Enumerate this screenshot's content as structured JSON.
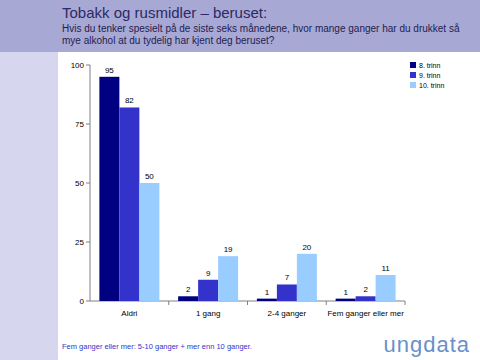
{
  "chart_data": {
    "type": "bar",
    "title": "Tobakk og rusmidler – beruset:",
    "subtitle": "Hvis du tenker spesielt på de siste seks månedene, hvor mange ganger har du drukket så mye alkohol at du tydelig har kjent deg beruset?",
    "categories": [
      "Aldri",
      "1 gang",
      "2-4 ganger",
      "Fem ganger eller mer"
    ],
    "series": [
      {
        "name": "8. trinn",
        "color": "#000080",
        "values": [
          95,
          2,
          1,
          1
        ]
      },
      {
        "name": "9. trinn",
        "color": "#3333cc",
        "values": [
          82,
          9,
          7,
          2
        ]
      },
      {
        "name": "10. trinn",
        "color": "#99ccff",
        "values": [
          50,
          19,
          20,
          11
        ]
      }
    ],
    "ylim": [
      0,
      100
    ],
    "yticks": [
      0,
      25,
      50,
      75,
      100
    ],
    "grid": false,
    "legend": "upper right",
    "data_labels": true,
    "annotations": [
      "Fem ganger eller mer: 5-10 ganger + mer enn 10 ganger.",
      "ungdata"
    ]
  }
}
